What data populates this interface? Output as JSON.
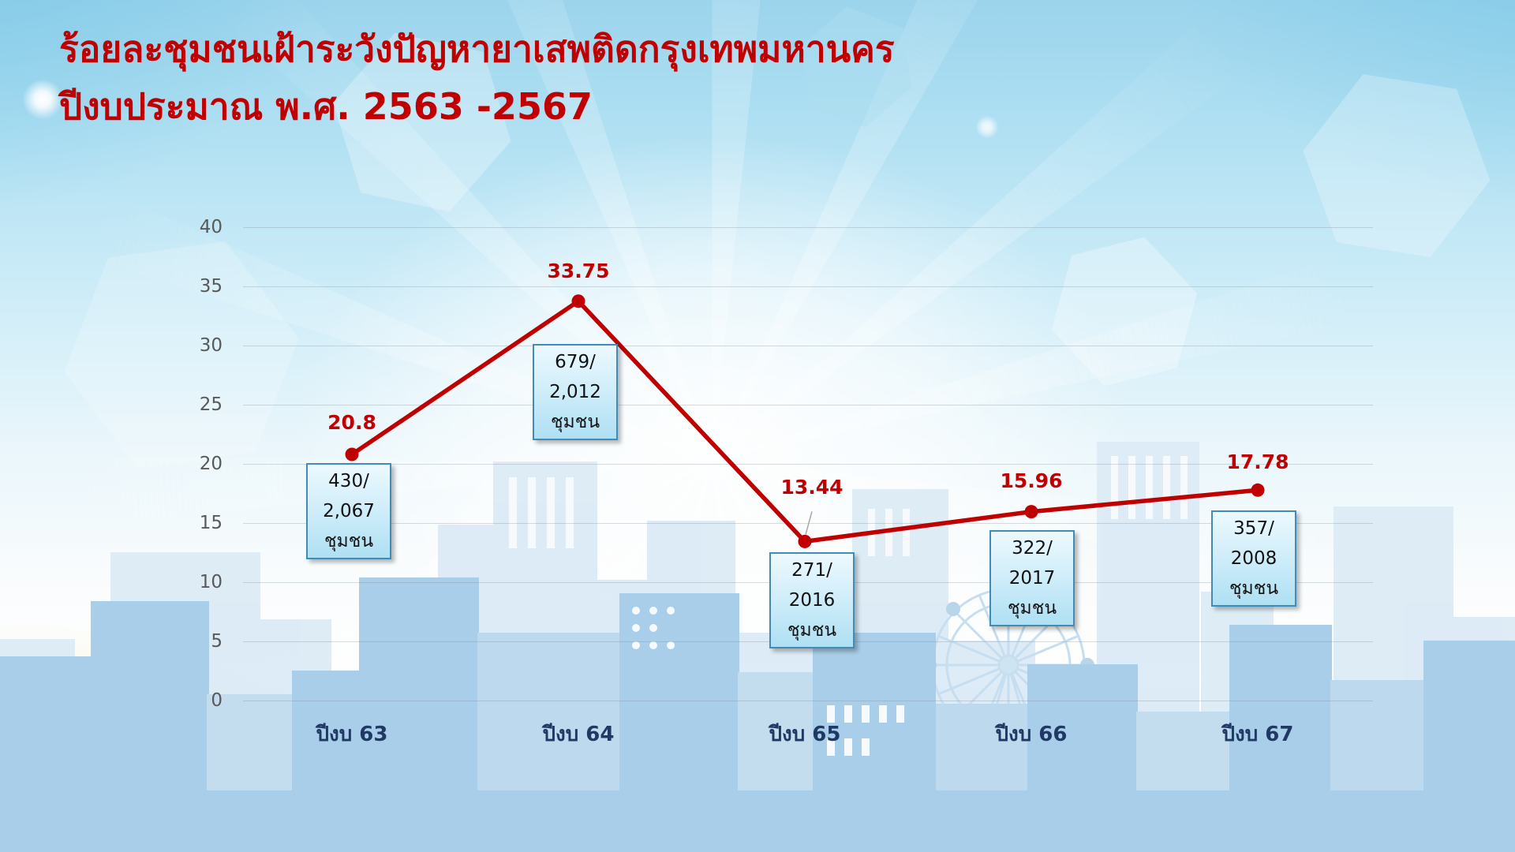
{
  "slide": {
    "title_line1": "ร้อยละชุมชนเฝ้าระวังปัญหายาเสพติดกรุงเทพมหานคร",
    "title_line2": "ปีงบประมาณ พ.ศ. 2563 -2567"
  },
  "colors": {
    "title": "#C00000",
    "line": "#C00000",
    "marker": "#C00000",
    "data_label": "#C00000",
    "y_axis_label": "#595959",
    "x_axis_label": "#1F3864",
    "callout_border": "#418BB4",
    "callout_fill_top": "#ECF9FE",
    "callout_fill_bottom": "#AEE0F3",
    "gridline": "#C9CFD4"
  },
  "chart_data": {
    "type": "line",
    "title": "ร้อยละชุมชนเฝ้าระวังปัญหายาเสพติดกรุงเทพมหานคร ปีงบประมาณ พ.ศ. 2563 -2567",
    "categories": [
      "ปีงบ 63",
      "ปีงบ 64",
      "ปีงบ 65",
      "ปีงบ 66",
      "ปีงบ 67"
    ],
    "values": [
      20.8,
      33.75,
      13.44,
      15.96,
      17.78
    ],
    "value_labels": [
      "20.8",
      "33.75",
      "13.44",
      "15.96",
      "17.78"
    ],
    "y_ticks": [
      0,
      5,
      10,
      15,
      20,
      25,
      30,
      35,
      40
    ],
    "ylim": [
      0,
      40
    ],
    "xlabel": "",
    "ylabel": "",
    "grid": true,
    "legend": false,
    "callouts": [
      {
        "lines": [
          "430/",
          "2,067",
          "ชุมชน"
        ]
      },
      {
        "lines": [
          "679/",
          "2,012",
          "ชุมชน"
        ]
      },
      {
        "lines": [
          "271/",
          "2016",
          "ชุมชน"
        ]
      },
      {
        "lines": [
          "322/",
          "2017",
          "ชุมชน"
        ]
      },
      {
        "lines": [
          "357/",
          "2008",
          "ชุมชน"
        ]
      }
    ]
  }
}
